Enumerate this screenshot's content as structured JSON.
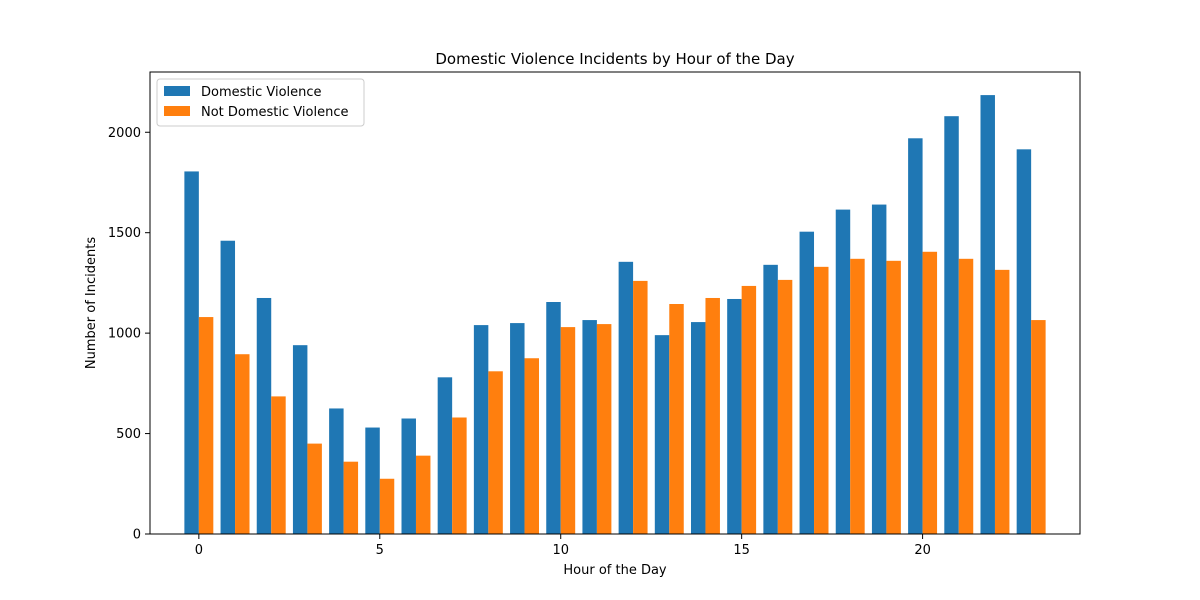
{
  "chart_data": {
    "type": "bar",
    "title": "Domestic Violence Incidents by Hour of the Day",
    "xlabel": "Hour of the Day",
    "ylabel": "Number of Incidents",
    "categories": [
      0,
      1,
      2,
      3,
      4,
      5,
      6,
      7,
      8,
      9,
      10,
      11,
      12,
      13,
      14,
      15,
      16,
      17,
      18,
      19,
      20,
      21,
      22,
      23
    ],
    "xticks": [
      0,
      5,
      10,
      15,
      20
    ],
    "yticks": [
      0,
      500,
      1000,
      1500,
      2000
    ],
    "xlim": [
      -1.35,
      24.35
    ],
    "ylim": [
      0,
      2300
    ],
    "grid": false,
    "legend_position": "top-left",
    "series": [
      {
        "name": "Domestic Violence",
        "color": "#1f77b4",
        "values": [
          1805,
          1460,
          1175,
          940,
          625,
          530,
          575,
          780,
          1040,
          1050,
          1155,
          1065,
          1355,
          990,
          1055,
          1170,
          1340,
          1505,
          1615,
          1640,
          1970,
          2080,
          2185,
          1915
        ]
      },
      {
        "name": "Not Domestic Violence",
        "color": "#ff7f0e",
        "values": [
          1080,
          895,
          685,
          450,
          360,
          275,
          390,
          580,
          810,
          875,
          1030,
          1045,
          1260,
          1145,
          1175,
          1235,
          1265,
          1330,
          1370,
          1360,
          1405,
          1370,
          1315,
          1065
        ]
      }
    ]
  }
}
